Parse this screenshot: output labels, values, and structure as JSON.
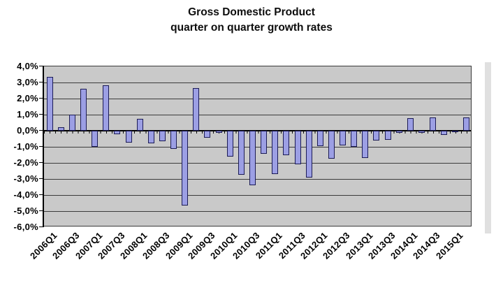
{
  "title": {
    "line1": "Gross Domestic Product",
    "line2": "quarter on quarter growth rates"
  },
  "chart_data": {
    "type": "bar",
    "title": "Gross Domestic Product quarter on quarter growth rates",
    "xlabel": "",
    "ylabel": "",
    "ylim": [
      -6,
      4
    ],
    "y_step": 1,
    "grid": true,
    "legend": "none",
    "decimal_separator": ",",
    "categories": [
      "2006Q1",
      "2006Q2",
      "2006Q3",
      "2006Q4",
      "2007Q1",
      "2007Q2",
      "2007Q3",
      "2007Q4",
      "2008Q1",
      "2008Q2",
      "2008Q3",
      "2008Q4",
      "2009Q1",
      "2009Q2",
      "2009Q3",
      "2009Q4",
      "2010Q1",
      "2010Q2",
      "2010Q3",
      "2010Q4",
      "2011Q1",
      "2011Q2",
      "2011Q3",
      "2011Q4",
      "2012Q1",
      "2012Q2",
      "2012Q3",
      "2012Q4",
      "2013Q1",
      "2013Q2",
      "2013Q3",
      "2013Q4",
      "2014Q1",
      "2014Q2",
      "2014Q3",
      "2014Q4",
      "2015Q1",
      "2015Q2"
    ],
    "values": [
      3.35,
      0.2,
      1.0,
      2.6,
      -1.0,
      2.85,
      -0.2,
      -0.75,
      0.75,
      -0.8,
      -0.65,
      -1.15,
      -4.65,
      2.65,
      -0.45,
      -0.15,
      -1.6,
      -2.75,
      -3.4,
      -1.45,
      -2.7,
      -1.5,
      -2.1,
      -2.9,
      -0.95,
      -1.75,
      -0.9,
      -1.0,
      -1.7,
      -0.6,
      -0.55,
      -0.15,
      0.8,
      -0.15,
      0.85,
      -0.25,
      -0.1,
      0.85
    ],
    "y_tick_labels": [
      "4,0%",
      "3,0%",
      "2,0%",
      "1,0%",
      "0,0%",
      "-1,0%",
      "-2,0%",
      "-3,0%",
      "-4,0%",
      "-5,0%",
      "-6,0%"
    ],
    "x_tick_labels": [
      "2006Q1",
      "2006Q3",
      "2007Q1",
      "2007Q3",
      "2008Q1",
      "2008Q3",
      "2009Q1",
      "2009Q3",
      "2010Q1",
      "2010Q3",
      "2011Q1",
      "2011Q3",
      "2012Q1",
      "2012Q3",
      "2013Q1",
      "2013Q3",
      "2014Q1",
      "2014Q3",
      "2015Q1"
    ],
    "x_label_every": 2,
    "colors": {
      "bar_fill": "#9c9fe4",
      "bar_border": "#1b1b55",
      "plot_background": "#c9c9c9",
      "gridline": "#3c3c3c",
      "axis": "#000000",
      "text": "#000000",
      "background": "#ffffff"
    }
  }
}
